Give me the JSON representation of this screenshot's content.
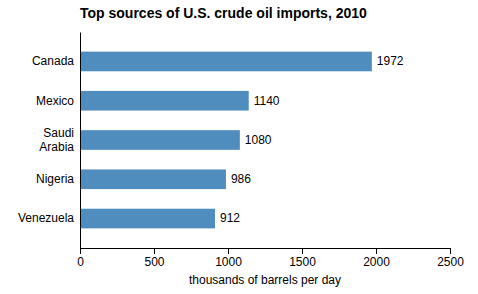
{
  "chart_data": {
    "type": "bar",
    "orientation": "horizontal",
    "title": "Top sources of U.S. crude oil imports, 2010",
    "categories": [
      "Venezuela",
      "Nigeria",
      "Saudi\nArabia",
      "Mexico",
      "Canada"
    ],
    "values": [
      912,
      986,
      1080,
      1140,
      1972
    ],
    "color": "#4f8dbe",
    "xlabel": "thousands of barrels per day",
    "xlim": [
      0,
      2500
    ],
    "xticks": [
      0,
      500,
      1000,
      1500,
      2000,
      2500
    ],
    "data_labels": true,
    "grid": false
  }
}
